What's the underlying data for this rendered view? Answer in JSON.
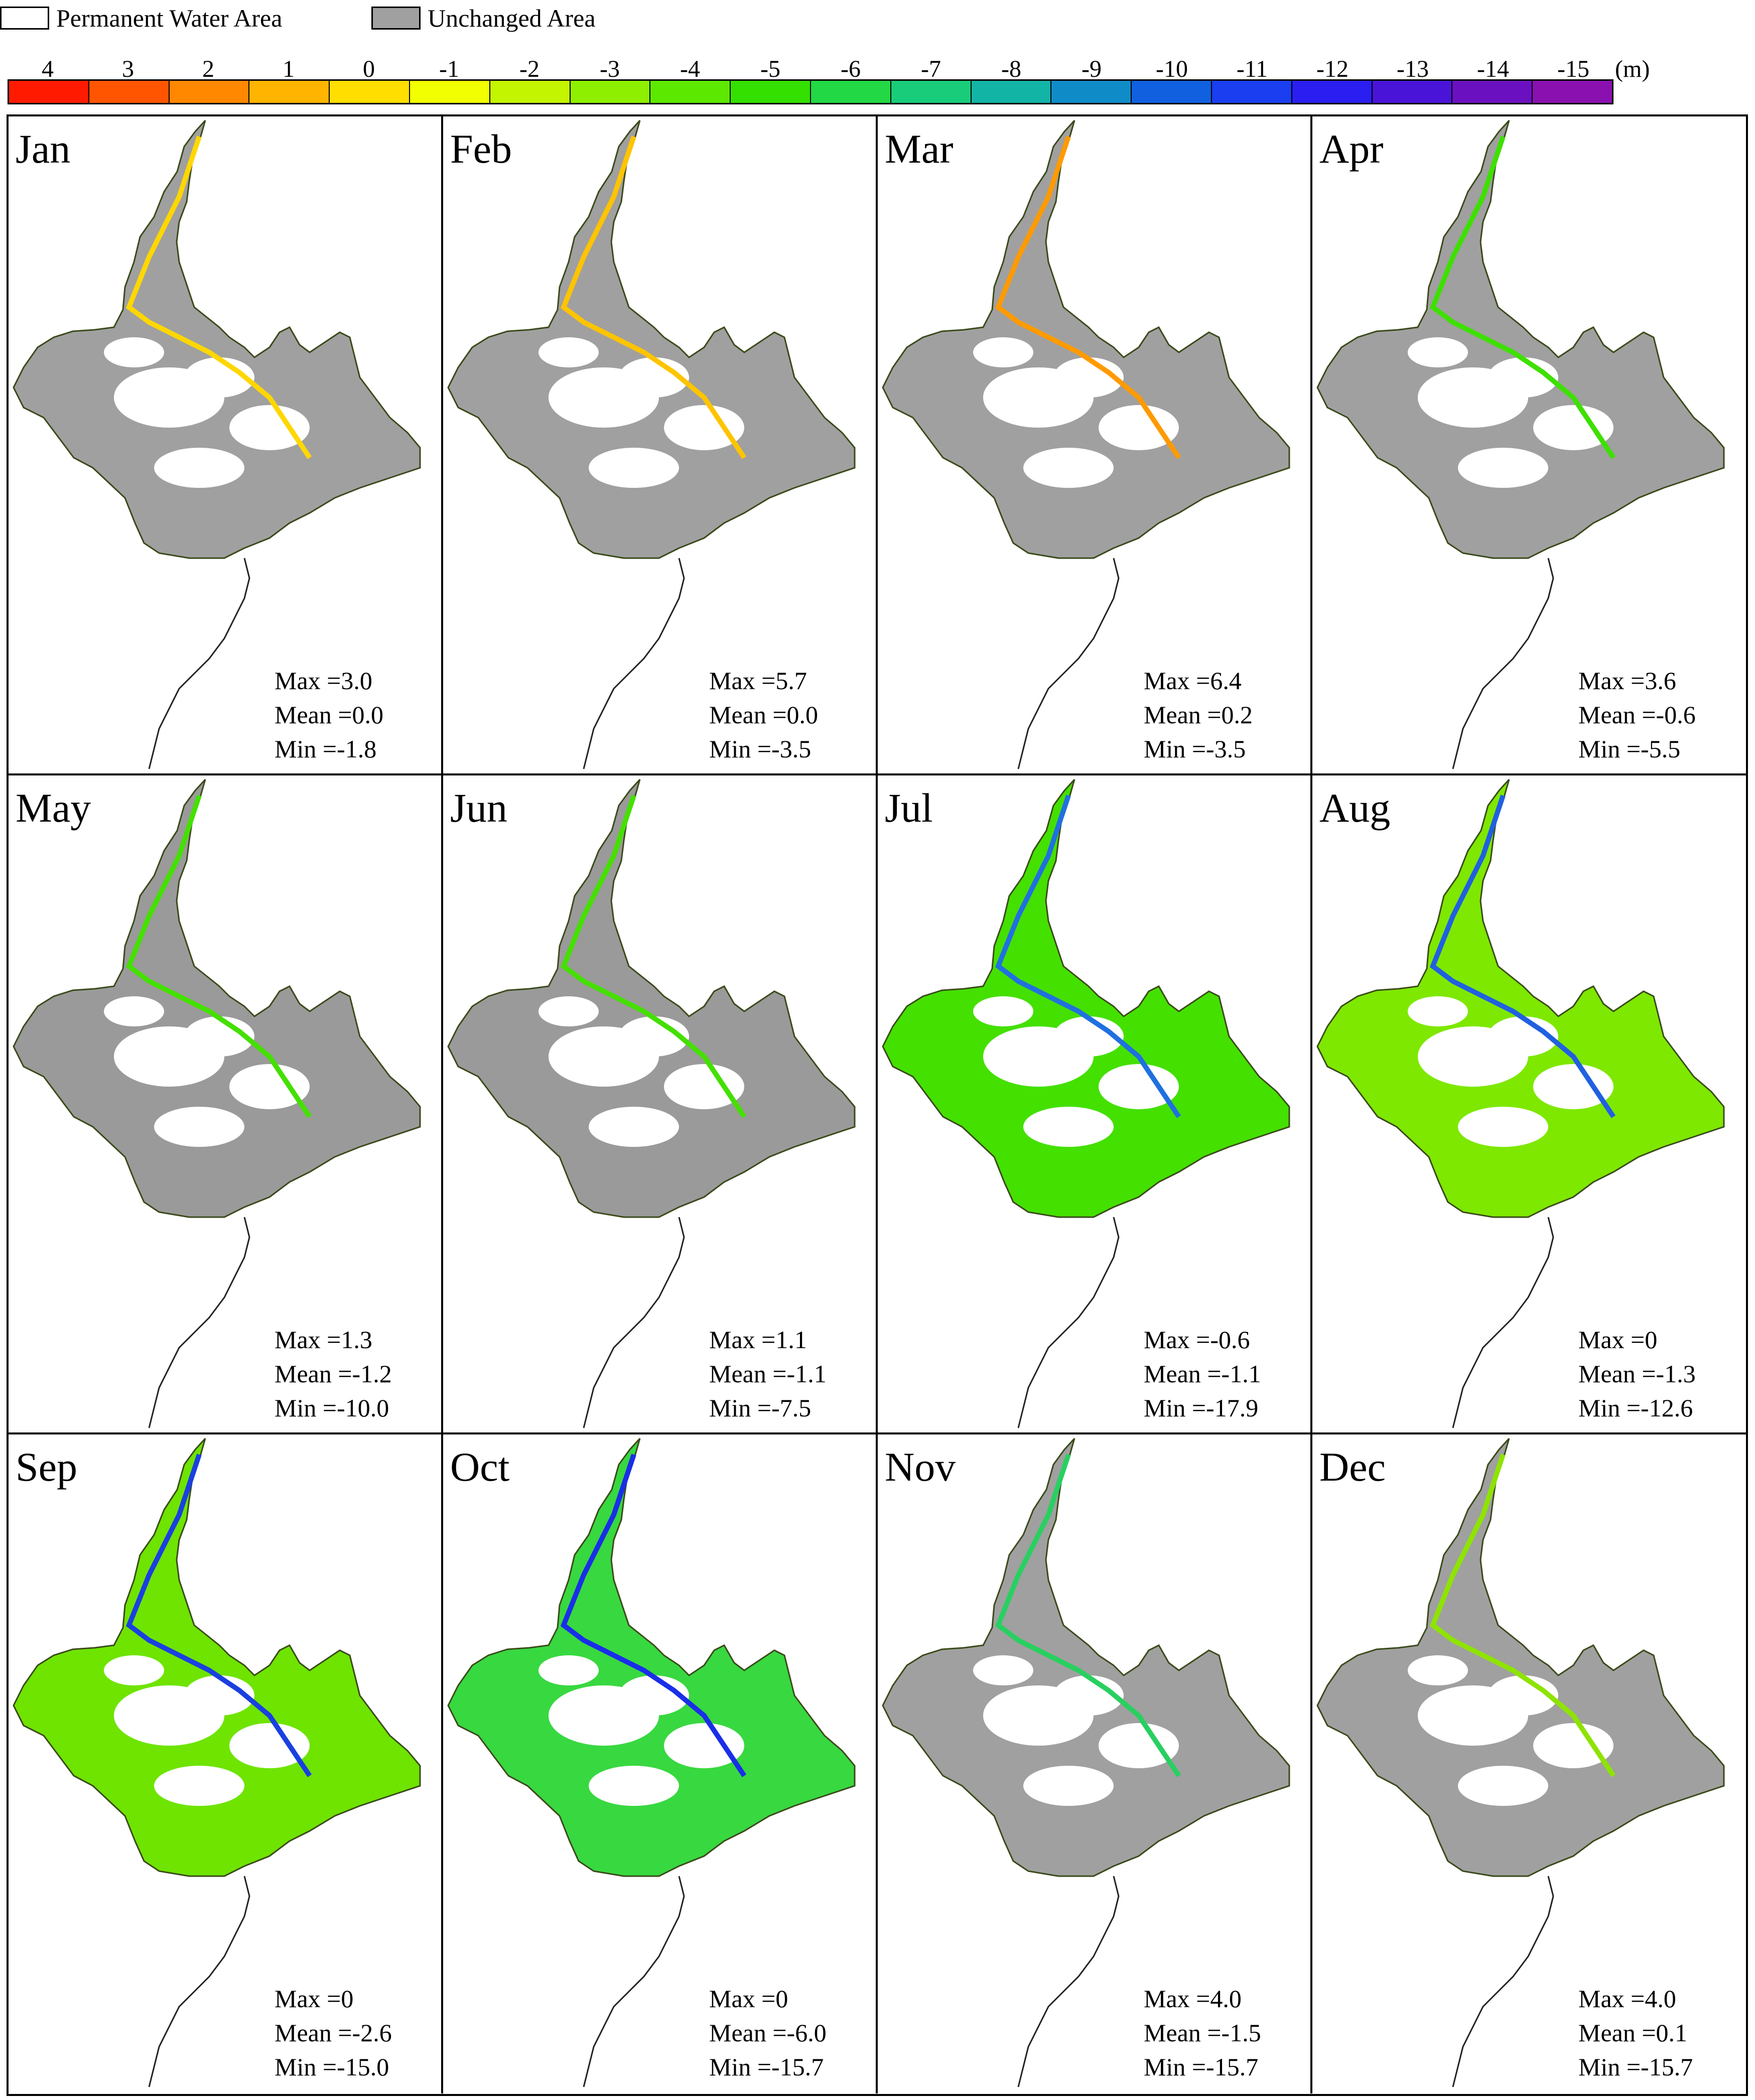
{
  "legend": {
    "permanent_water": {
      "label": "Permanent Water Area",
      "color": "#ffffff"
    },
    "unchanged": {
      "label": "Unchanged  Area",
      "color": "#a0a0a0"
    }
  },
  "scale": {
    "ticks": [
      "4",
      "3",
      "2",
      "1",
      "0",
      "-1",
      "-2",
      "-3",
      "-4",
      "-5",
      "-6",
      "-7",
      "-8",
      "-9",
      "-10",
      "-11",
      "-12",
      "-13",
      "-14",
      "-15"
    ],
    "unit": "(m)",
    "colors": [
      "#ff1a00",
      "#ff5500",
      "#ff8800",
      "#ffb400",
      "#ffde00",
      "#f2ff00",
      "#c4f500",
      "#8ef000",
      "#5de800",
      "#33e000",
      "#22d844",
      "#18cc7a",
      "#12b4a6",
      "#0f8cc8",
      "#1060e0",
      "#1a3ef0",
      "#2a1ef0",
      "#4a14d8",
      "#6a10c0",
      "#8a10b0"
    ]
  },
  "panels": [
    {
      "month": "Jan",
      "max": "Max =3.0",
      "mean": "Mean =0.0",
      "min": "Min =-1.8",
      "fill": "#a0a0a0",
      "accent": "#ffd700"
    },
    {
      "month": "Feb",
      "max": "Max =5.7",
      "mean": "Mean =0.0",
      "min": "Min =-3.5",
      "fill": "#a0a0a0",
      "accent": "#ffc400"
    },
    {
      "month": "Mar",
      "max": "Max =6.4",
      "mean": "Mean =0.2",
      "min": "Min =-3.5",
      "fill": "#a0a0a0",
      "accent": "#ff9a00"
    },
    {
      "month": "Apr",
      "max": "Max =3.6",
      "mean": "Mean =-0.6",
      "min": "Min =-5.5",
      "fill": "#a0a0a0",
      "accent": "#3ee000"
    },
    {
      "month": "May",
      "max": "Max =1.3",
      "mean": "Mean =-1.2",
      "min": "Min =-10.0",
      "fill": "#9a9a9a",
      "accent": "#44e000"
    },
    {
      "month": "Jun",
      "max": "Max =1.1",
      "mean": "Mean =-1.1",
      "min": "Min =-7.5",
      "fill": "#9a9a9a",
      "accent": "#44e000"
    },
    {
      "month": "Jul",
      "max": "Max =-0.6",
      "mean": "Mean =-1.1",
      "min": "Min =-17.9",
      "fill": "#44e000",
      "accent": "#2070e0"
    },
    {
      "month": "Aug",
      "max": "Max =0",
      "mean": "Mean =-1.3",
      "min": "Min =-12.6",
      "fill": "#7ee800",
      "accent": "#2060e0"
    },
    {
      "month": "Sep",
      "max": "Max =0",
      "mean": "Mean =-2.6",
      "min": "Min =-15.0",
      "fill": "#6ee400",
      "accent": "#1a40e0"
    },
    {
      "month": "Oct",
      "max": "Max =0",
      "mean": "Mean =-6.0",
      "min": "Min =-15.7",
      "fill": "#38d840",
      "accent": "#1a2ee8"
    },
    {
      "month": "Nov",
      "max": "Max =4.0",
      "mean": "Mean =-1.5",
      "min": "Min =-15.7",
      "fill": "#a0a0a0",
      "accent": "#28d060"
    },
    {
      "month": "Dec",
      "max": "Max =4.0",
      "mean": "Mean =0.1",
      "min": "Min =-15.7",
      "fill": "#a0a0a0",
      "accent": "#8ee400"
    }
  ]
}
